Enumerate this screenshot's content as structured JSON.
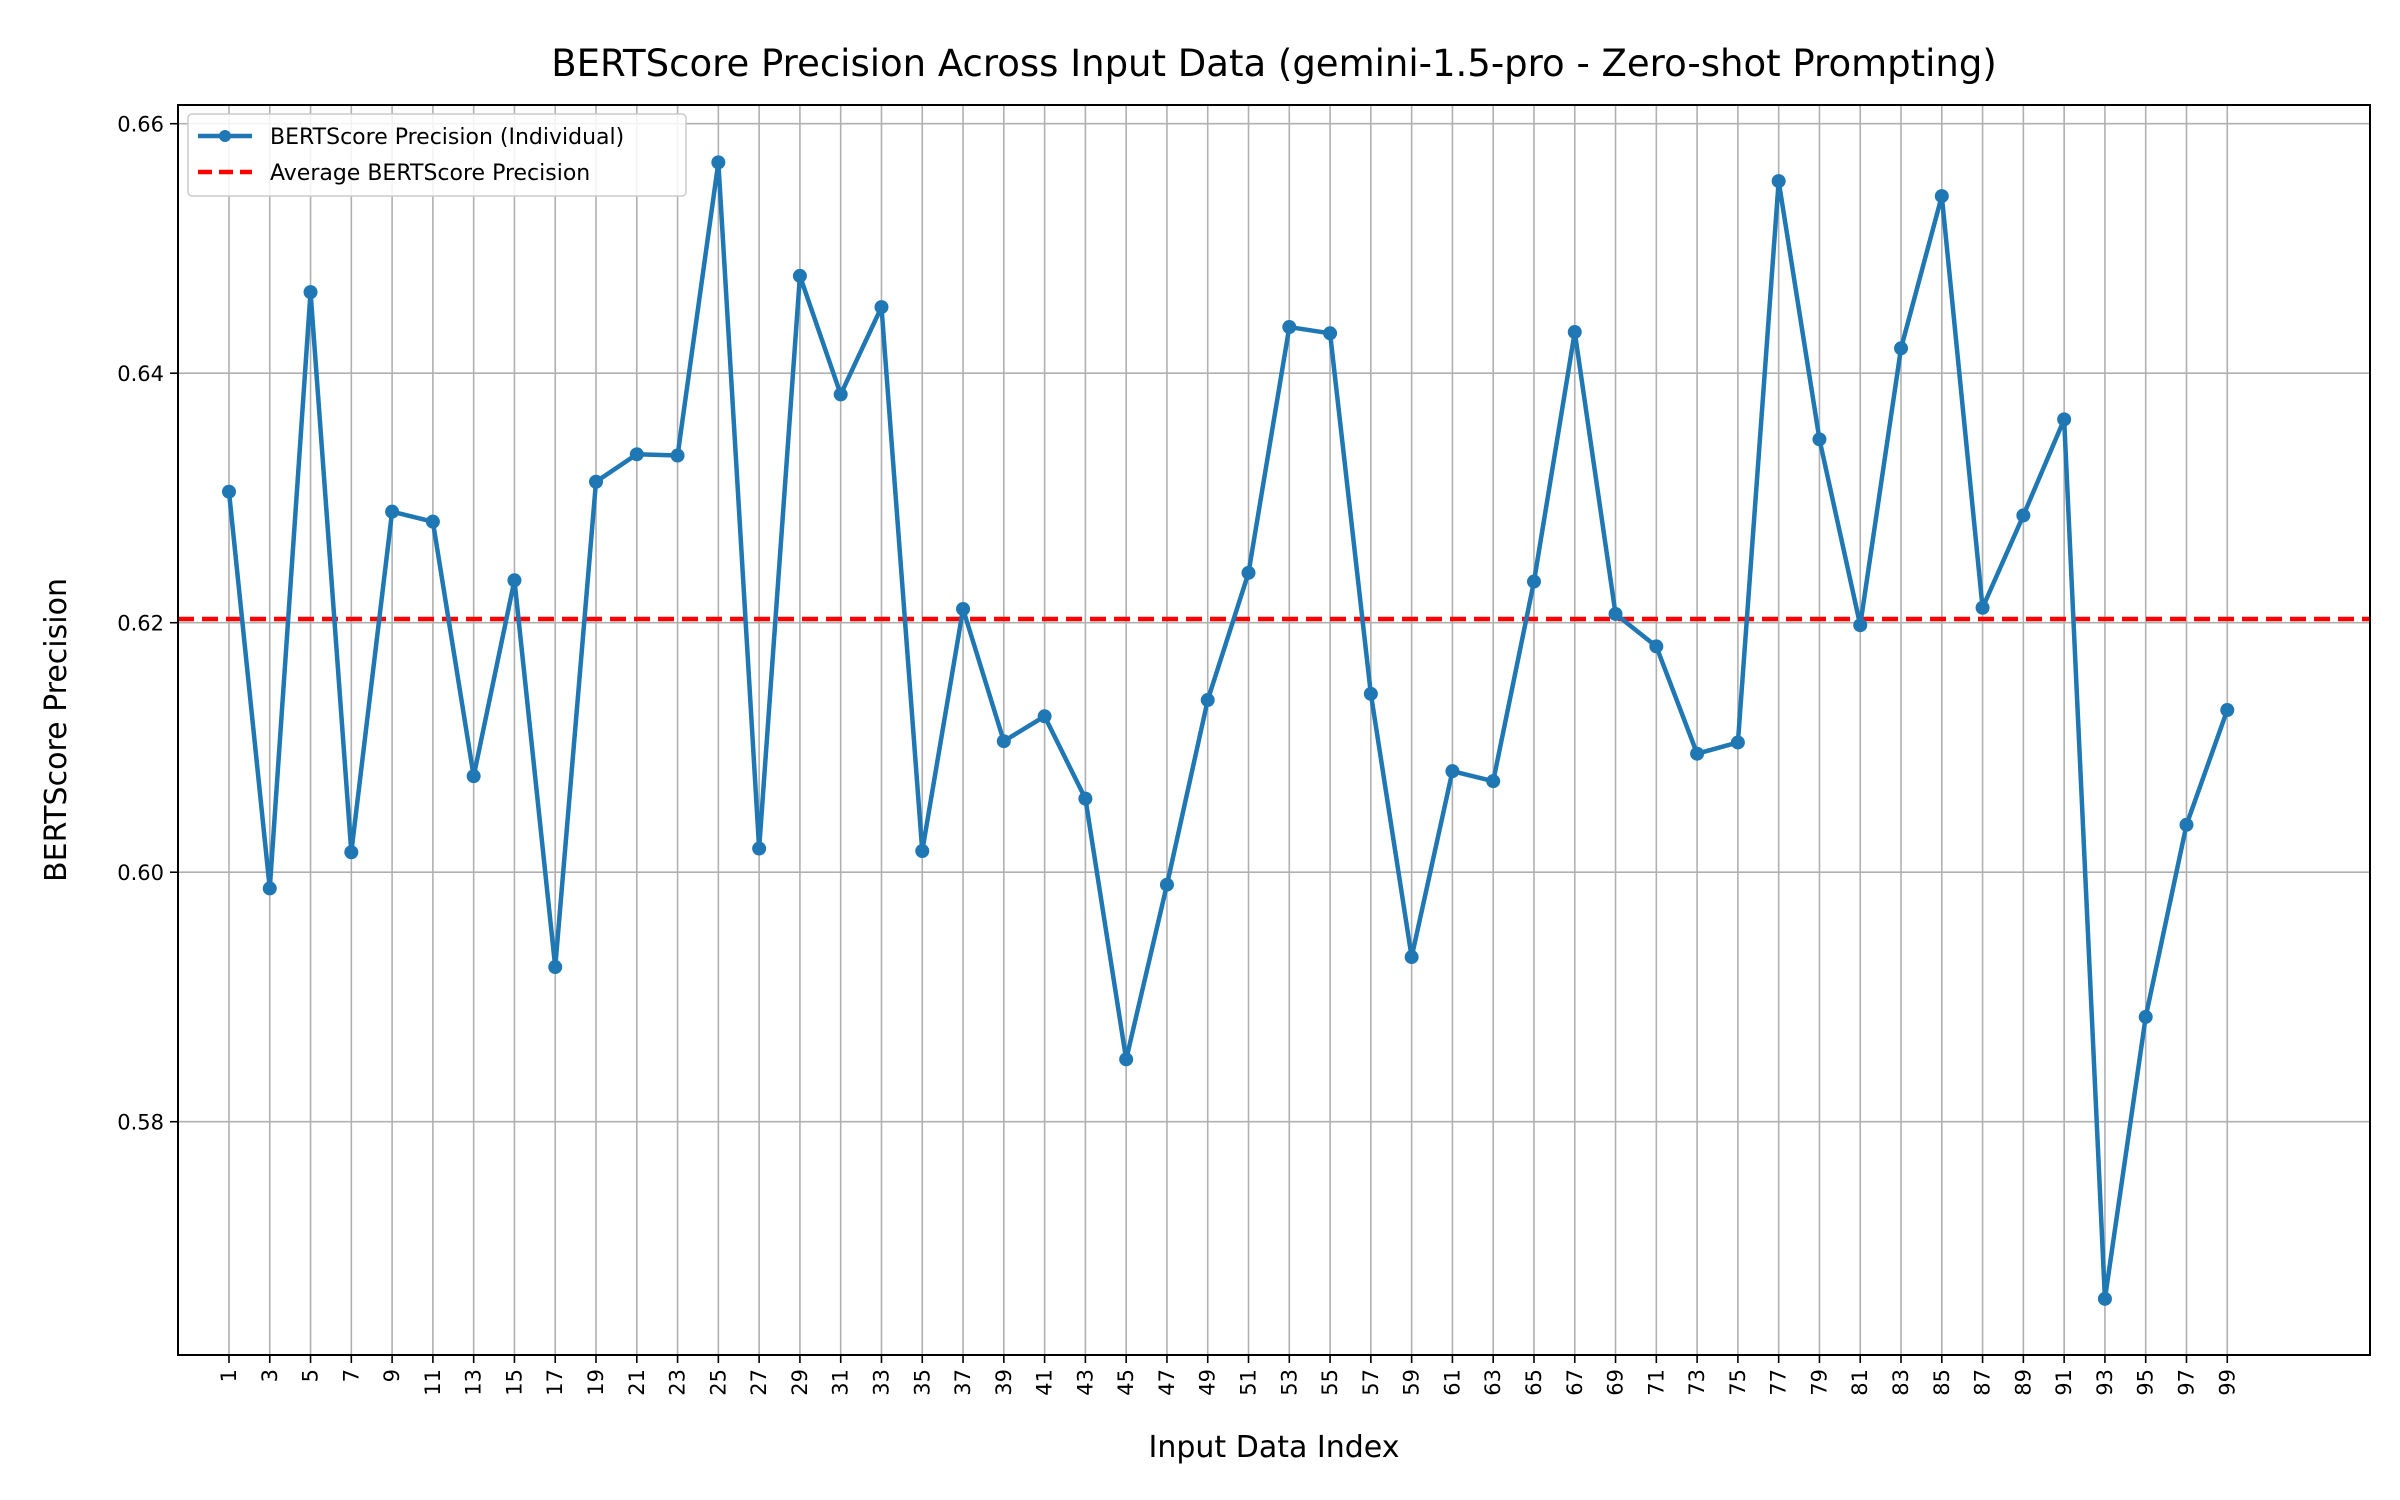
{
  "chart_data": {
    "type": "line",
    "title": "BERTScore Precision Across Input Data (gemini-1.5-pro - Zero-shot Prompting)",
    "xlabel": "Input Data Index",
    "ylabel": "BERTScore Precision",
    "xlim": [
      -1.5,
      106
    ],
    "ylim": [
      0.5613,
      0.6615
    ],
    "x_ticks": [
      1,
      3,
      5,
      7,
      9,
      11,
      13,
      15,
      17,
      19,
      21,
      23,
      25,
      27,
      29,
      31,
      33,
      35,
      37,
      39,
      41,
      43,
      45,
      47,
      49,
      51,
      53,
      55,
      57,
      59,
      61,
      63,
      65,
      67,
      69,
      71,
      73,
      75,
      77,
      79,
      81,
      83,
      85,
      87,
      89,
      91,
      93,
      95,
      97,
      99
    ],
    "y_ticks": [
      0.58,
      0.6,
      0.62,
      0.64,
      0.66
    ],
    "y_tick_labels": [
      "0.58",
      "0.60",
      "0.62",
      "0.64",
      "0.66"
    ],
    "grid": true,
    "legend_position": "top-left",
    "series": [
      {
        "name": "BERTScore Precision (Individual)",
        "color": "#1f77b4",
        "style": "solid-with-markers",
        "x": [
          1,
          3,
          5,
          7,
          9,
          11,
          13,
          15,
          17,
          19,
          21,
          23,
          25,
          27,
          29,
          31,
          33,
          35,
          37,
          39,
          41,
          43,
          45,
          47,
          49,
          51,
          53,
          55,
          57,
          59,
          61,
          63,
          65,
          67,
          69,
          71,
          73,
          75,
          77,
          79,
          81,
          83,
          85,
          87,
          89,
          91,
          93,
          95,
          97,
          99
        ],
        "values": [
          0.6305,
          0.5987,
          0.6465,
          0.6016,
          0.6289,
          0.6281,
          0.6077,
          0.6234,
          0.5924,
          0.6313,
          0.6335,
          0.6334,
          0.6569,
          0.6019,
          0.6478,
          0.6383,
          0.6453,
          0.6017,
          0.6211,
          0.6105,
          0.6125,
          0.6059,
          0.585,
          0.599,
          0.6138,
          0.624,
          0.6437,
          0.6432,
          0.6143,
          0.5932,
          0.6081,
          0.6073,
          0.6233,
          0.6433,
          0.6207,
          0.6181,
          0.6095,
          0.6104,
          0.6554,
          0.6347,
          0.6198,
          0.642,
          0.6542,
          0.6212,
          0.6286,
          0.6363,
          0.5658,
          0.5884,
          0.6038,
          0.613
        ]
      },
      {
        "name": "Average BERTScore Precision",
        "color": "#ff0000",
        "style": "dashed",
        "value": 0.6203
      }
    ]
  }
}
